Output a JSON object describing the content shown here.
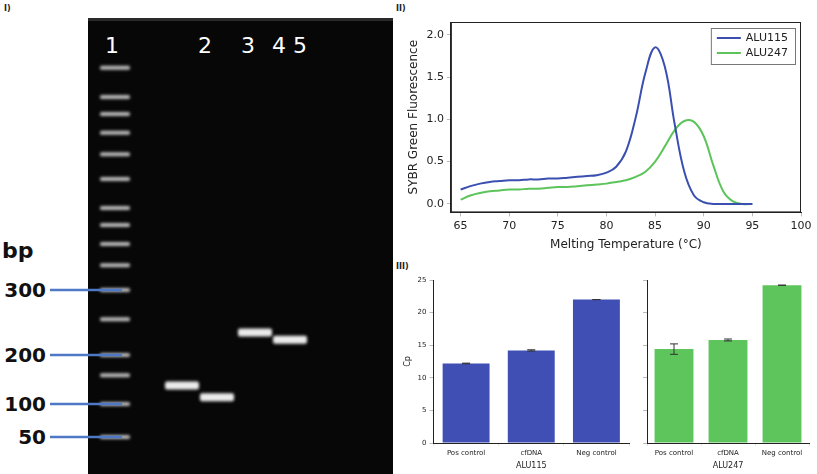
{
  "panel_labels": [
    "I)",
    "II)",
    "III)"
  ],
  "gel": {
    "lanes": [
      "1",
      "2",
      "3",
      "4",
      "5"
    ],
    "ladder_lane": "1",
    "size_label": "bp",
    "size_markers": [
      300,
      200,
      100,
      50
    ],
    "ladder_bands": [
      50,
      100,
      150,
      200,
      250,
      300,
      350,
      400,
      450,
      500,
      600,
      700,
      800,
      900,
      1000,
      1200
    ],
    "bands": [
      {
        "lane": "2",
        "bp": 130
      },
      {
        "lane": "3",
        "bp": 110
      },
      {
        "lane": "4",
        "bp": 230
      },
      {
        "lane": "5",
        "bp": 220
      }
    ]
  },
  "chart_data": [
    {
      "type": "line",
      "x_label": "Melting Temperature (°C)",
      "y_label": "SYBR Green Fluorescence",
      "x": [
        65,
        66,
        67,
        68,
        69,
        70,
        71,
        72,
        73,
        74,
        75,
        76,
        77,
        78,
        79,
        80,
        81,
        82,
        83,
        84,
        85,
        86,
        87,
        88,
        89,
        90,
        91,
        92,
        93,
        94,
        95
      ],
      "series": [
        {
          "name": "ALU115",
          "color": "#3a4fb0",
          "values": [
            0.17,
            0.21,
            0.24,
            0.26,
            0.27,
            0.28,
            0.28,
            0.29,
            0.29,
            0.3,
            0.3,
            0.31,
            0.32,
            0.33,
            0.34,
            0.37,
            0.44,
            0.62,
            1.02,
            1.55,
            1.85,
            1.62,
            0.95,
            0.38,
            0.1,
            0.02,
            0.0,
            0.0,
            0.0,
            0.0,
            0.0
          ]
        },
        {
          "name": "ALU247",
          "color": "#5cc45a",
          "values": [
            0.05,
            0.1,
            0.13,
            0.15,
            0.16,
            0.17,
            0.17,
            0.18,
            0.18,
            0.19,
            0.2,
            0.2,
            0.21,
            0.22,
            0.23,
            0.24,
            0.26,
            0.28,
            0.32,
            0.38,
            0.5,
            0.68,
            0.87,
            0.98,
            0.97,
            0.8,
            0.45,
            0.15,
            0.03,
            0.0,
            0.0
          ]
        }
      ],
      "xlim": [
        64,
        100
      ],
      "xticks": [
        65,
        70,
        75,
        80,
        85,
        90,
        95,
        100
      ],
      "ylim": [
        -0.1,
        2.15
      ],
      "yticks": [
        {
          "value": 0,
          "label": "0.0"
        },
        {
          "value": 0.5,
          "label": "0.5"
        },
        {
          "value": 1,
          "label": "1.0"
        },
        {
          "value": 1.5,
          "label": "1.5"
        },
        {
          "value": 2,
          "label": "2.0"
        }
      ],
      "grid": false,
      "legend": "upper right"
    },
    {
      "type": "bar",
      "x_label": "ALU115",
      "y_label": "Cp",
      "categories": [
        "Pos control",
        "cfDNA",
        "Neg control"
      ],
      "values": [
        12.2,
        14.2,
        22.0
      ],
      "errors": [
        0.05,
        0.1,
        0
      ],
      "color": "#3f4fb3",
      "ylim": [
        0,
        25
      ],
      "yticks": [
        0,
        5,
        10,
        15,
        20,
        25
      ],
      "grid": false
    },
    {
      "type": "bar",
      "x_label": "ALU247",
      "categories": [
        "Pos control",
        "cfDNA",
        "Neg control"
      ],
      "values": [
        14.4,
        15.8,
        24.2
      ],
      "errors": [
        0.8,
        0.15,
        0
      ],
      "color": "#5ec45c",
      "ylim": [
        0,
        25
      ],
      "yticks": [
        0,
        5,
        10,
        15,
        20,
        25
      ],
      "grid": false,
      "tick_labels": "x"
    }
  ]
}
